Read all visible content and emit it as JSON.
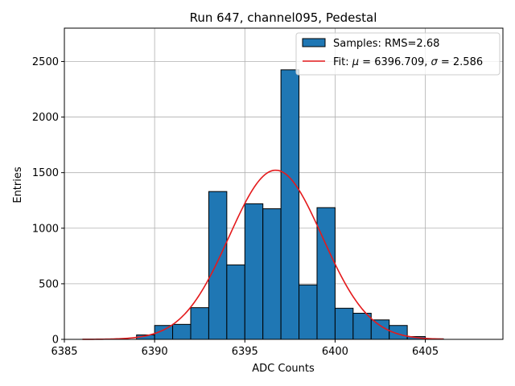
{
  "chart_data": {
    "type": "bar",
    "title": "Run 647, channel095, Pedestal",
    "xlabel": "ADC Counts",
    "ylabel": "Entries",
    "xlim": [
      6385,
      6409.3
    ],
    "ylim": [
      0,
      2800
    ],
    "xticks": [
      6385,
      6390,
      6395,
      6400,
      6405
    ],
    "yticks": [
      0,
      500,
      1000,
      1500,
      2000,
      2500
    ],
    "grid": true,
    "legend_position": "top-right",
    "bin_edges": [
      6389,
      6390,
      6391,
      6392,
      6393,
      6394,
      6395,
      6396,
      6397,
      6398,
      6399,
      6400,
      6401,
      6402,
      6403,
      6404,
      6405,
      6406
    ],
    "series": [
      {
        "name": "Samples: RMS=2.68",
        "kind": "histogram",
        "color": "#1f77b4",
        "values": [
          40,
          125,
          135,
          285,
          1330,
          670,
          1220,
          1175,
          2425,
          490,
          1185,
          280,
          235,
          175,
          125,
          25,
          5
        ]
      },
      {
        "name_prefix": "Fit: ",
        "name_mu": "μ",
        "name_mid": " = 6396.709, ",
        "name_sigma": "σ",
        "name_suffix": " = 2.586",
        "kind": "gaussian",
        "color": "#e41a1c",
        "mu": 6396.709,
        "sigma": 2.586,
        "amplitude": 1522,
        "x_range": [
          6386,
          6406
        ]
      }
    ]
  }
}
